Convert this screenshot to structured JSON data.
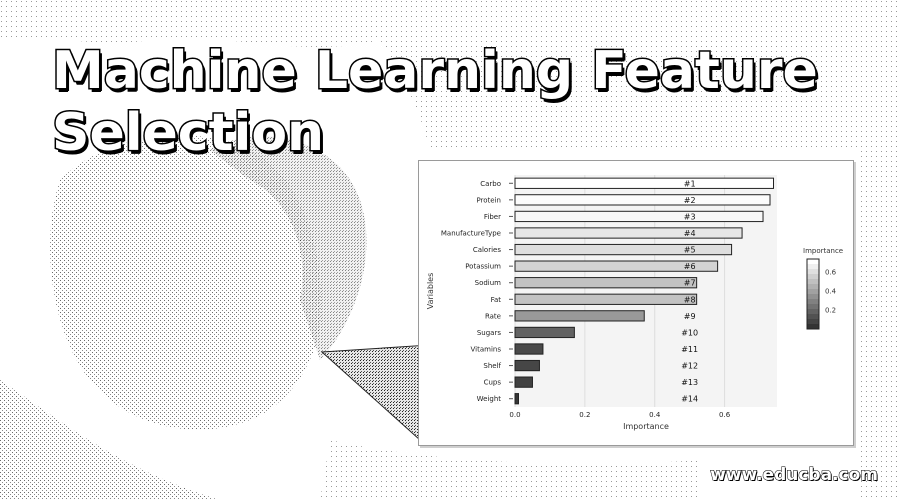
{
  "page": {
    "title": "Machine Learning Feature Selection",
    "watermark": "www.educba.com"
  },
  "chart_data": {
    "type": "bar",
    "orientation": "horizontal",
    "xlabel": "Importance",
    "ylabel": "Variables",
    "xlim": [
      0,
      0.75
    ],
    "xticks": [
      "0.0",
      "0.2",
      "0.4",
      "0.6"
    ],
    "categories": [
      "Carbo",
      "Protein",
      "Fiber",
      "ManufactureType",
      "Calories",
      "Potassium",
      "Sodium",
      "Fat",
      "Rate",
      "Sugars",
      "Vitamins",
      "Shelf",
      "Cups",
      "Weight"
    ],
    "values": [
      0.74,
      0.73,
      0.71,
      0.65,
      0.62,
      0.58,
      0.52,
      0.52,
      0.37,
      0.17,
      0.08,
      0.07,
      0.05,
      0.01
    ],
    "ranks": [
      "#1",
      "#2",
      "#3",
      "#4",
      "#5",
      "#6",
      "#7",
      "#8",
      "#9",
      "#10",
      "#11",
      "#12",
      "#13",
      "#14"
    ],
    "legend": {
      "title": "Importance",
      "ticks": [
        "0.6",
        "0.4",
        "0.2"
      ],
      "position": "right"
    },
    "colors": {
      "high": "#ffffff",
      "low": "#333333",
      "border": "#222222"
    }
  }
}
